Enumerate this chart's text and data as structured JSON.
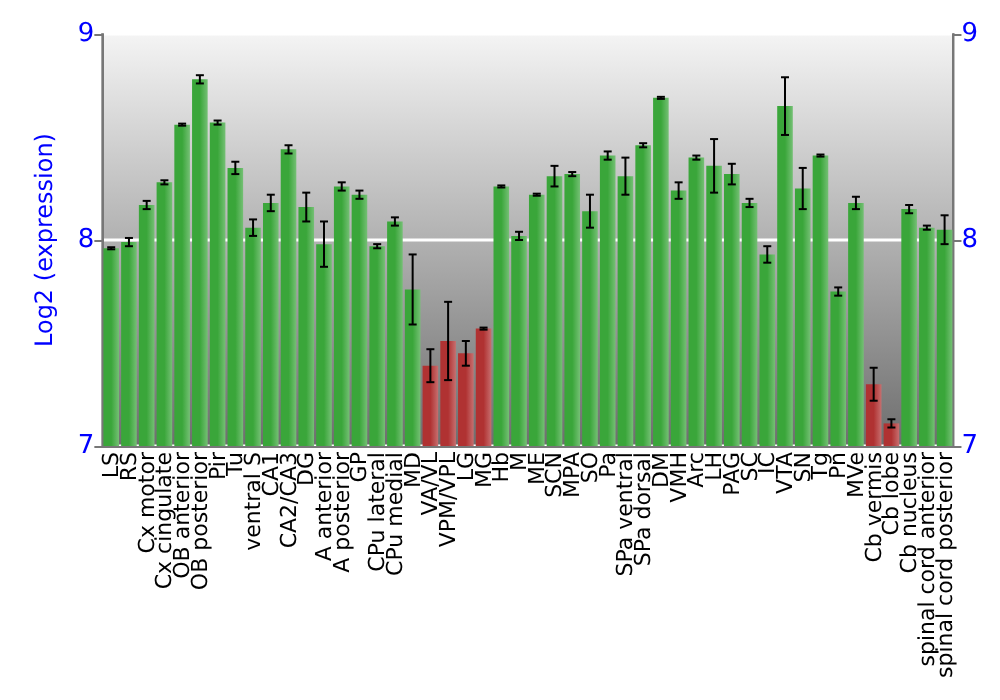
{
  "chart_data": {
    "type": "bar",
    "ylabel": "Log2 (expression)",
    "categories": [
      "LS",
      "RS",
      "Cx motor",
      "Cx cingulate",
      "OB anterior",
      "OB posterior",
      "Pir",
      "Tu",
      "ventral S",
      "CA1",
      "CA2/CA3",
      "DG",
      "A anterior",
      "A posterior",
      "GP",
      "CPu lateral",
      "CPu medial",
      "MD",
      "VA/VL",
      "VPM/VPL",
      "LG",
      "MG",
      "Hb",
      "M",
      "ME",
      "SCN",
      "MPA",
      "SO",
      "Pa",
      "SPa ventral",
      "SPa dorsal",
      "DM",
      "VMH",
      "Arc",
      "LH",
      "PAG",
      "SC",
      "IC",
      "VTA",
      "SN",
      "Tg",
      "Pn",
      "MVe",
      "Cb vermis",
      "Cb lobe",
      "Cb nucleus",
      "spinal cord anterior",
      "spinal cord posterior"
    ],
    "values": [
      7.96,
      7.99,
      8.17,
      8.28,
      8.56,
      8.78,
      8.57,
      8.35,
      8.06,
      8.18,
      8.44,
      8.16,
      7.98,
      8.26,
      8.22,
      7.97,
      8.09,
      7.76,
      7.39,
      7.51,
      7.45,
      7.57,
      8.26,
      8.02,
      8.22,
      8.31,
      8.32,
      8.14,
      8.41,
      8.31,
      8.46,
      8.69,
      8.24,
      8.4,
      8.36,
      8.32,
      8.18,
      7.93,
      8.65,
      8.25,
      8.41,
      7.75,
      8.18,
      7.3,
      7.11,
      8.15,
      8.06,
      8.05
    ],
    "errors": [
      0.005,
      0.02,
      0.02,
      0.01,
      0.005,
      0.02,
      0.01,
      0.03,
      0.04,
      0.04,
      0.02,
      0.07,
      0.11,
      0.02,
      0.02,
      0.01,
      0.02,
      0.17,
      0.08,
      0.19,
      0.06,
      0.005,
      0.005,
      0.02,
      0.005,
      0.05,
      0.01,
      0.08,
      0.02,
      0.09,
      0.01,
      0.005,
      0.04,
      0.01,
      0.13,
      0.05,
      0.02,
      0.04,
      0.14,
      0.1,
      0.005,
      0.02,
      0.03,
      0.08,
      0.02,
      0.02,
      0.01,
      0.07
    ],
    "colors": [
      "#3aa63a",
      "#3aa63a",
      "#3aa63a",
      "#3aa63a",
      "#3aa63a",
      "#3aa63a",
      "#3aa63a",
      "#3aa63a",
      "#3aa63a",
      "#3aa63a",
      "#3aa63a",
      "#3aa63a",
      "#3aa63a",
      "#3aa63a",
      "#3aa63a",
      "#3aa63a",
      "#3aa63a",
      "#3aa63a",
      "#b03232",
      "#b03232",
      "#b03232",
      "#b03232",
      "#3aa63a",
      "#3aa63a",
      "#3aa63a",
      "#3aa63a",
      "#3aa63a",
      "#3aa63a",
      "#3aa63a",
      "#3aa63a",
      "#3aa63a",
      "#3aa63a",
      "#3aa63a",
      "#3aa63a",
      "#3aa63a",
      "#3aa63a",
      "#3aa63a",
      "#3aa63a",
      "#3aa63a",
      "#3aa63a",
      "#3aa63a",
      "#3aa63a",
      "#3aa63a",
      "#b03232",
      "#b03232",
      "#3aa63a",
      "#3aa63a",
      "#3aa63a"
    ],
    "ylim": [
      7,
      9
    ],
    "yticks": [
      7,
      8,
      9
    ],
    "y2lim": [
      7,
      9
    ],
    "y2ticks": [
      7,
      8,
      9
    ],
    "grid": "y"
  }
}
